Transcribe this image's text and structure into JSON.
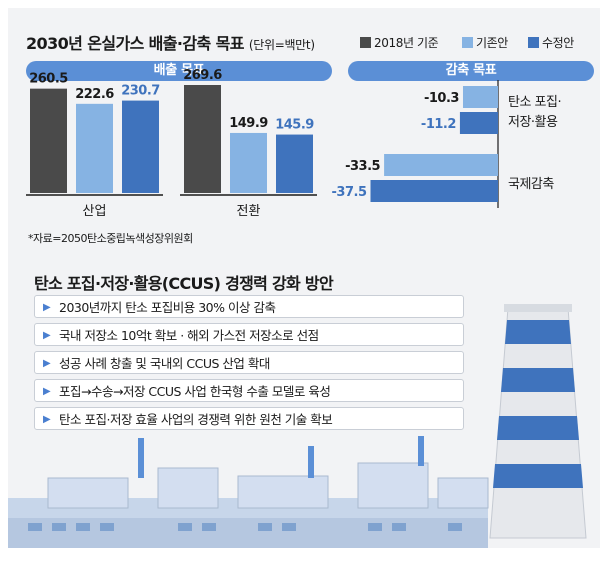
{
  "title": "2030년 온실가스 배출·감축 목표",
  "unit_note": "(단위=백만t)",
  "legend": [
    {
      "label": "2018년 기준",
      "color": "#4a4a4a"
    },
    {
      "label": "기존안",
      "color": "#86b3e3"
    },
    {
      "label": "수정안",
      "color": "#3f73bd"
    }
  ],
  "source": "*자료=2050탄소중립녹색성장위원회",
  "chart_data": [
    {
      "type": "bar",
      "title": "배출 목표",
      "categories": [
        "산업",
        "전환"
      ],
      "series": [
        {
          "name": "2018년 기준",
          "values": [
            260.5,
            269.6
          ],
          "labels": [
            "260.5",
            "269.6"
          ]
        },
        {
          "name": "기존안",
          "values": [
            222.6,
            149.9
          ],
          "labels": [
            "222.6",
            "149.9"
          ]
        },
        {
          "name": "수정안",
          "values": [
            230.7,
            145.9
          ],
          "labels": [
            "230.7",
            "145.9"
          ]
        }
      ]
    },
    {
      "type": "bar",
      "orientation": "horizontal",
      "title": "감축 목표",
      "categories": [
        "탄소 포집·저장·활용",
        "국제감축"
      ],
      "series": [
        {
          "name": "기존안",
          "values": [
            -10.3,
            -33.5
          ],
          "labels": [
            "-10.3",
            "-33.5"
          ]
        },
        {
          "name": "수정안",
          "values": [
            -11.2,
            -37.5
          ],
          "labels": [
            "-11.2",
            "-37.5"
          ]
        }
      ]
    }
  ],
  "ccus": {
    "title": "탄소 포집·저장·활용(CCUS) 경쟁력 강화 방안",
    "items": [
      "2030년까지 탄소 포집비용 30% 이상 감축",
      "국내 저장소 10억t 확보 · 해외 가스전 저장소로 선점",
      "성공 사례 창출 및 국내외 CCUS 산업 확대",
      "포집→수송→저장 CCUS 사업 한국형 수출 모델로 육성",
      "탄소 포집·저장 효율 사업의 경쟁력 위한 원천 기술 확보"
    ]
  }
}
